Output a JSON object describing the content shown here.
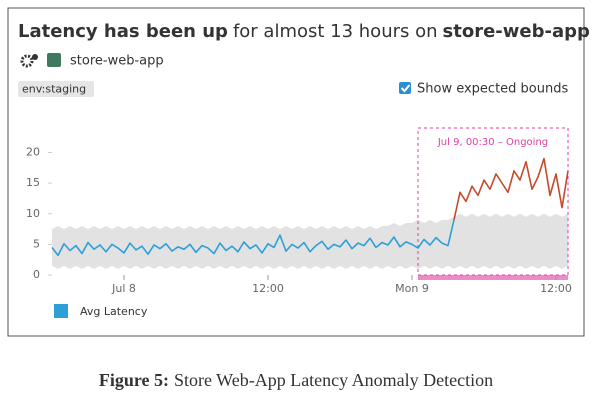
{
  "chart_data": {
    "type": "line",
    "title": [
      "Latency has been up",
      "for almost 13 hours on",
      "store-web-app"
    ],
    "service": "store-web-app",
    "tag": "env:staging",
    "bounds_toggle": "Show expected bounds",
    "caption": [
      "Figure 5:",
      "Store Web-App Latency Anomaly Detection"
    ],
    "anomaly": {
      "start": 24.5,
      "label": "Jul 9, 00:30 – Ongoing",
      "color": "#e040a0"
    },
    "x": [
      -6,
      -5.5,
      -5,
      -4.5,
      -4,
      -3.5,
      -3,
      -2.5,
      -2,
      -1.5,
      -1,
      -0.5,
      0,
      0.5,
      1,
      1.5,
      2,
      2.5,
      3,
      3.5,
      4,
      4.5,
      5,
      5.5,
      6,
      6.5,
      7,
      7.5,
      8,
      8.5,
      9,
      9.5,
      10,
      10.5,
      11,
      11.5,
      12,
      12.5,
      13,
      13.5,
      14,
      14.5,
      15,
      15.5,
      16,
      16.5,
      17,
      17.5,
      18,
      18.5,
      19,
      19.5,
      20,
      20.5,
      21,
      21.5,
      22,
      22.5,
      23,
      23.5,
      24,
      24.5,
      25,
      25.5,
      26,
      26.5,
      27,
      27.5,
      28,
      28.5,
      29,
      29.5,
      30,
      30.5,
      31,
      31.5,
      32,
      32.5,
      33,
      33.5,
      34,
      34.5,
      35,
      35.5,
      36,
      36.5,
      37
    ],
    "series": [
      {
        "name": "Avg Latency",
        "color": "#2e9fd6",
        "values": [
          4.5,
          3.2,
          5.1,
          4.0,
          4.8,
          3.5,
          5.3,
          4.2,
          4.9,
          3.8,
          5.0,
          4.4,
          3.6,
          5.2,
          4.1,
          4.7,
          3.4,
          4.9,
          4.3,
          5.1,
          3.9,
          4.6,
          4.2,
          5.0,
          3.7,
          4.8,
          4.4,
          3.5,
          5.2,
          4.0,
          4.7,
          3.8,
          5.4,
          4.3,
          4.9,
          3.6,
          5.1,
          4.5,
          6.5,
          3.9,
          5.0,
          4.4,
          5.3,
          3.8,
          4.8,
          5.5,
          4.2,
          5.0,
          4.6,
          5.7,
          4.3,
          5.2,
          4.8,
          6.0,
          4.5,
          5.3,
          4.9,
          6.2,
          4.6,
          5.4,
          5.0,
          4.4,
          5.8,
          4.9,
          6.1,
          5.2,
          4.8,
          9.0,
          null,
          null,
          null,
          null,
          null,
          null,
          null,
          null,
          null,
          null,
          null,
          null,
          null,
          null,
          null,
          null,
          null,
          null,
          null
        ]
      },
      {
        "color": "#c44a2a",
        "values": [
          null,
          null,
          null,
          null,
          null,
          null,
          null,
          null,
          null,
          null,
          null,
          null,
          null,
          null,
          null,
          null,
          null,
          null,
          null,
          null,
          null,
          null,
          null,
          null,
          null,
          null,
          null,
          null,
          null,
          null,
          null,
          null,
          null,
          null,
          null,
          null,
          null,
          null,
          null,
          null,
          null,
          null,
          null,
          null,
          null,
          null,
          null,
          null,
          null,
          null,
          null,
          null,
          null,
          null,
          null,
          null,
          null,
          null,
          null,
          null,
          null,
          null,
          null,
          null,
          null,
          null,
          null,
          9.0,
          13.5,
          12.0,
          14.5,
          13.0,
          15.5,
          14.0,
          16.5,
          15.0,
          13.5,
          17.0,
          15.5,
          18.5,
          14.0,
          16.0,
          19.0,
          13.0,
          16.5,
          11.0,
          17.0
        ]
      }
    ],
    "bounds": {
      "color": "#e2e2e2",
      "upper": [
        7.5,
        8.0,
        7.5,
        8.0,
        7.5,
        8.0,
        7.5,
        8.0,
        7.5,
        8.0,
        7.5,
        8.0,
        7.5,
        8.0,
        7.5,
        8.0,
        7.5,
        8.0,
        7.5,
        8.0,
        7.5,
        8.0,
        7.5,
        8.0,
        7.5,
        8.0,
        7.5,
        8.0,
        7.5,
        8.0,
        7.5,
        8.0,
        7.5,
        8.0,
        7.5,
        8.0,
        7.5,
        8.0,
        7.5,
        8.0,
        7.5,
        8.0,
        7.5,
        8.0,
        7.5,
        8.0,
        7.5,
        8.0,
        7.5,
        8.0,
        7.5,
        8.0,
        7.5,
        8.0,
        7.5,
        8.0,
        8.0,
        8.5,
        8.0,
        8.5,
        8.5,
        9.0,
        8.5,
        9.0,
        8.5,
        9.0,
        9.0,
        9.5,
        10.0,
        9.5,
        10.0,
        9.5,
        10.0,
        9.5,
        10.0,
        9.5,
        10.0,
        9.5,
        10.0,
        9.5,
        10.0,
        9.5,
        10.0,
        9.5,
        10.0,
        9.5,
        10.0
      ],
      "lower": [
        1.5,
        1.0,
        1.5,
        1.0,
        1.5,
        1.0,
        1.5,
        1.0,
        1.5,
        1.0,
        1.5,
        1.0,
        1.5,
        1.0,
        1.5,
        1.0,
        1.5,
        1.0,
        1.5,
        1.0,
        1.5,
        1.0,
        1.5,
        1.0,
        1.5,
        1.0,
        1.5,
        1.0,
        1.5,
        1.0,
        1.5,
        1.0,
        1.5,
        1.0,
        1.5,
        1.0,
        1.5,
        1.0,
        1.5,
        1.0,
        1.5,
        1.0,
        1.5,
        1.0,
        1.5,
        1.0,
        1.5,
        1.0,
        1.5,
        1.0,
        1.5,
        1.0,
        1.5,
        1.0,
        1.5,
        1.0,
        1.5,
        1.0,
        1.5,
        1.0,
        1.5,
        1.0,
        1.5,
        1.0,
        1.5,
        1.0,
        1.5,
        1.0,
        1.5,
        1.0,
        1.5,
        1.0,
        1.5,
        1.0,
        1.5,
        1.0,
        1.5,
        1.0,
        1.5,
        1.0,
        1.5,
        1.0,
        1.5,
        1.0,
        1.5,
        1.0,
        1.5
      ]
    },
    "xlim": [
      -6,
      37
    ],
    "xticks": [
      {
        "value": 0,
        "label": "Jul 8"
      },
      {
        "value": 12,
        "label": "12:00"
      },
      {
        "value": 24,
        "label": "Mon 9"
      },
      {
        "value": 36,
        "label": "12:00"
      }
    ],
    "ylim": [
      0,
      24
    ],
    "yticks": [
      0,
      5,
      10,
      15,
      20
    ]
  }
}
